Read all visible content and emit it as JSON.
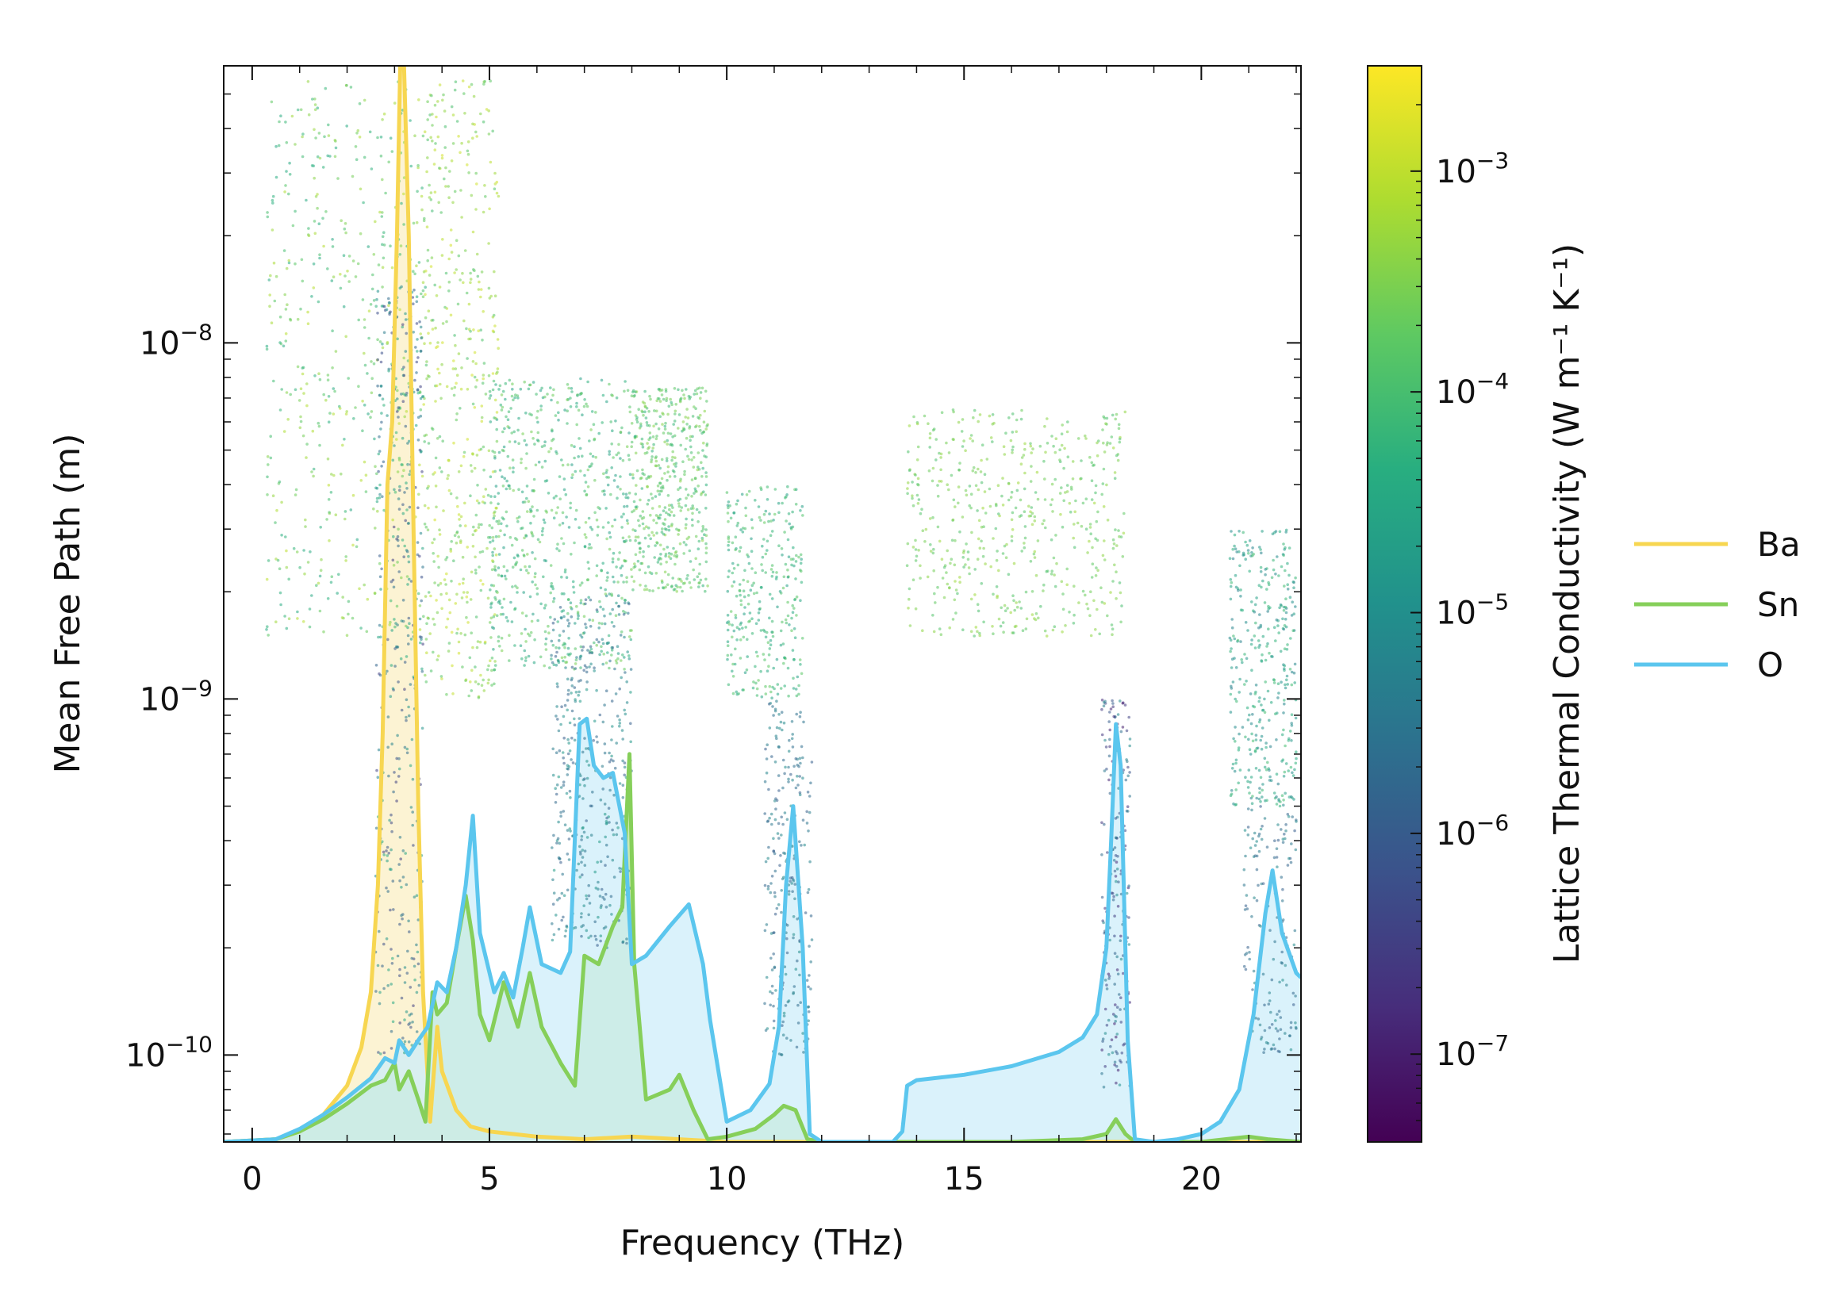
{
  "chart_data": {
    "type": "scatter",
    "title": "",
    "xlabel": "Frequency (THz)",
    "ylabel": "Mean Free Path (m)",
    "xlim": [
      -0.6,
      22.1
    ],
    "ylim": [
      5.7e-11,
      6e-08
    ],
    "x_scale": "linear",
    "y_scale": "log",
    "grid": false,
    "x_ticks": [
      {
        "value": 0,
        "label": "0"
      },
      {
        "value": 5,
        "label": "5"
      },
      {
        "value": 10,
        "label": "10"
      },
      {
        "value": 15,
        "label": "15"
      },
      {
        "value": 20,
        "label": "20"
      }
    ],
    "y_ticks": [
      {
        "value": 1e-10,
        "base": "10",
        "exp": "−10"
      },
      {
        "value": 1e-09,
        "base": "10",
        "exp": "−9"
      },
      {
        "value": 1e-08,
        "base": "10",
        "exp": "−8"
      }
    ],
    "colorbar": {
      "label": "Lattice Thermal Conductivity (W m⁻¹ K⁻¹)",
      "scale": "log",
      "range": [
        4e-08,
        0.003
      ],
      "colormap": "viridis",
      "ticks": [
        {
          "value": 1e-07,
          "base": "10",
          "exp": "−7"
        },
        {
          "value": 1e-06,
          "base": "10",
          "exp": "−6"
        },
        {
          "value": 1e-05,
          "base": "10",
          "exp": "−5"
        },
        {
          "value": 0.0001,
          "base": "10",
          "exp": "−4"
        },
        {
          "value": 0.001,
          "base": "10",
          "exp": "−3"
        }
      ]
    },
    "legend_placement": "right",
    "series": [
      {
        "name": "Ba",
        "color": "#f7d651",
        "fill": "#fbefc4",
        "x": [
          -0.6,
          0.5,
          1.0,
          1.5,
          2.0,
          2.3,
          2.5,
          2.65,
          2.75,
          2.85,
          2.95,
          3.05,
          3.12,
          3.2,
          3.3,
          3.4,
          3.5,
          3.6,
          3.75,
          3.9,
          4.0,
          4.3,
          4.6,
          5.0,
          5.5,
          6.0,
          7.0,
          8.0,
          9.0,
          10.0,
          11.0,
          12.0,
          22.1
        ],
        "y": [
          5.7e-11,
          5.8e-11,
          6.1e-11,
          6.8e-11,
          8.2e-11,
          1.05e-10,
          1.5e-10,
          3e-10,
          8e-10,
          4e-09,
          6e-09,
          2e-08,
          6e-08,
          6e-08,
          2e-08,
          3e-09,
          5e-10,
          1.5e-10,
          6.5e-11,
          1.2e-10,
          9e-11,
          7e-11,
          6.3e-11,
          6.1e-11,
          6e-11,
          5.9e-11,
          5.8e-11,
          5.9e-11,
          5.8e-11,
          5.7e-11,
          5.7e-11,
          5.7e-11,
          5.7e-11
        ]
      },
      {
        "name": "Sn",
        "color": "#86cf5a",
        "fill": "#b8e29a",
        "x": [
          -0.6,
          0.5,
          1.0,
          1.5,
          2.0,
          2.5,
          2.8,
          3.0,
          3.1,
          3.3,
          3.5,
          3.65,
          3.8,
          3.9,
          4.1,
          4.3,
          4.5,
          4.65,
          4.8,
          5.0,
          5.3,
          5.6,
          5.85,
          6.1,
          6.5,
          6.8,
          7.0,
          7.3,
          7.6,
          7.8,
          7.95,
          8.05,
          8.3,
          8.8,
          9.0,
          9.3,
          9.6,
          10.0,
          10.6,
          11.0,
          11.2,
          11.45,
          11.7,
          12.0,
          14.0,
          16.0,
          17.5,
          18.0,
          18.2,
          18.4,
          18.6,
          19.0,
          20.0,
          21.0,
          21.4,
          22.1
        ],
        "y": [
          5.7e-11,
          5.8e-11,
          6.1e-11,
          6.6e-11,
          7.3e-11,
          8.2e-11,
          8.5e-11,
          9.5e-11,
          8e-11,
          9e-11,
          7.5e-11,
          6.5e-11,
          1.5e-10,
          1.3e-10,
          1.4e-10,
          2e-10,
          2.8e-10,
          2.1e-10,
          1.3e-10,
          1.1e-10,
          1.6e-10,
          1.2e-10,
          1.7e-10,
          1.2e-10,
          9.5e-11,
          8.2e-11,
          1.9e-10,
          1.8e-10,
          2.3e-10,
          2.6e-10,
          7e-10,
          1.8e-10,
          7.5e-11,
          8e-11,
          8.8e-11,
          7e-11,
          5.8e-11,
          5.9e-11,
          6.2e-11,
          6.8e-11,
          7.2e-11,
          7e-11,
          5.8e-11,
          5.7e-11,
          5.7e-11,
          5.7e-11,
          5.8e-11,
          6e-11,
          6.6e-11,
          6e-11,
          5.7e-11,
          5.7e-11,
          5.7e-11,
          5.9e-11,
          5.8e-11,
          5.7e-11
        ]
      },
      {
        "name": "O",
        "color": "#5bc6ee",
        "fill": "#cdeef9",
        "x": [
          -0.6,
          0.5,
          1.0,
          1.5,
          2.0,
          2.5,
          2.8,
          3.0,
          3.1,
          3.3,
          3.5,
          3.7,
          3.9,
          4.1,
          4.3,
          4.5,
          4.65,
          4.8,
          5.1,
          5.3,
          5.5,
          5.7,
          5.85,
          6.1,
          6.5,
          6.7,
          6.9,
          7.05,
          7.2,
          7.4,
          7.6,
          7.85,
          8.0,
          8.3,
          8.8,
          9.2,
          9.5,
          9.65,
          10.0,
          10.5,
          10.9,
          11.1,
          11.25,
          11.4,
          11.6,
          11.75,
          12.0,
          13.5,
          13.7,
          13.8,
          14.0,
          15.0,
          16.0,
          17.0,
          17.5,
          17.8,
          18.0,
          18.1,
          18.2,
          18.3,
          18.45,
          18.6,
          19.0,
          19.5,
          20.0,
          20.4,
          20.8,
          21.1,
          21.35,
          21.5,
          21.7,
          22.0,
          22.1
        ],
        "y": [
          5.7e-11,
          5.8e-11,
          6.2e-11,
          6.8e-11,
          7.6e-11,
          8.6e-11,
          9.8e-11,
          9.5e-11,
          1.1e-10,
          1e-10,
          1.1e-10,
          1.2e-10,
          1.6e-10,
          1.5e-10,
          2e-10,
          3e-10,
          4.7e-10,
          2.2e-10,
          1.5e-10,
          1.7e-10,
          1.45e-10,
          2e-10,
          2.6e-10,
          1.8e-10,
          1.7e-10,
          1.95e-10,
          8.5e-10,
          8.8e-10,
          6.5e-10,
          6e-10,
          6.2e-10,
          4.2e-10,
          1.8e-10,
          1.9e-10,
          2.3e-10,
          2.65e-10,
          1.8e-10,
          1.25e-10,
          6.5e-11,
          7e-11,
          8.3e-11,
          1.2e-10,
          3e-10,
          5e-10,
          2e-10,
          6e-11,
          5.7e-11,
          5.7e-11,
          6.1e-11,
          8.2e-11,
          8.5e-11,
          8.8e-11,
          9.3e-11,
          1.02e-10,
          1.12e-10,
          1.3e-10,
          2e-10,
          4e-10,
          8.5e-10,
          6.5e-10,
          1.1e-10,
          5.8e-11,
          5.7e-11,
          5.8e-11,
          6e-11,
          6.5e-11,
          8e-11,
          1.3e-10,
          2.5e-10,
          3.3e-10,
          2.2e-10,
          1.7e-10,
          1.65e-10
        ]
      }
    ],
    "scatter_clusters": [
      {
        "x_range": [
          0.3,
          3.8
        ],
        "y_range": [
          1.5e-09,
          5.5e-08
        ],
        "color_range": [
          3e-05,
          0.001
        ],
        "count": 520
      },
      {
        "x_range": [
          2.6,
          3.6
        ],
        "y_range": [
          1e-10,
          1.5e-08
        ],
        "color_range": [
          3e-07,
          4e-05
        ],
        "count": 400
      },
      {
        "x_range": [
          3.6,
          5.2
        ],
        "y_range": [
          1e-09,
          5.5e-08
        ],
        "color_range": [
          0.0001,
          0.0015
        ],
        "count": 450
      },
      {
        "x_range": [
          5.0,
          8.0
        ],
        "y_range": [
          1.2e-09,
          8e-09
        ],
        "color_range": [
          2e-05,
          0.0003
        ],
        "count": 650
      },
      {
        "x_range": [
          6.3,
          8.0
        ],
        "y_range": [
          2e-10,
          2e-09
        ],
        "color_range": [
          1e-06,
          2e-05
        ],
        "count": 400
      },
      {
        "x_range": [
          8.0,
          9.6
        ],
        "y_range": [
          2e-09,
          7.5e-09
        ],
        "color_range": [
          5e-05,
          0.0004
        ],
        "count": 480
      },
      {
        "x_range": [
          10.0,
          11.6
        ],
        "y_range": [
          1e-09,
          4e-09
        ],
        "color_range": [
          2e-05,
          0.0002
        ],
        "count": 300
      },
      {
        "x_range": [
          10.8,
          11.8
        ],
        "y_range": [
          1e-10,
          1e-09
        ],
        "color_range": [
          1e-06,
          1e-05
        ],
        "count": 250
      },
      {
        "x_range": [
          13.8,
          18.4
        ],
        "y_range": [
          1.5e-09,
          6.5e-09
        ],
        "color_range": [
          0.0001,
          0.0006
        ],
        "count": 520
      },
      {
        "x_range": [
          17.9,
          18.5
        ],
        "y_range": [
          8e-11,
          1e-09
        ],
        "color_range": [
          1e-07,
          1e-05
        ],
        "count": 200
      },
      {
        "x_range": [
          20.6,
          22.0
        ],
        "y_range": [
          5e-10,
          3e-09
        ],
        "color_range": [
          5e-06,
          0.0001
        ],
        "count": 350
      },
      {
        "x_range": [
          20.9,
          22.0
        ],
        "y_range": [
          1e-10,
          5e-10
        ],
        "color_range": [
          1e-06,
          1e-05
        ],
        "count": 150
      }
    ]
  }
}
